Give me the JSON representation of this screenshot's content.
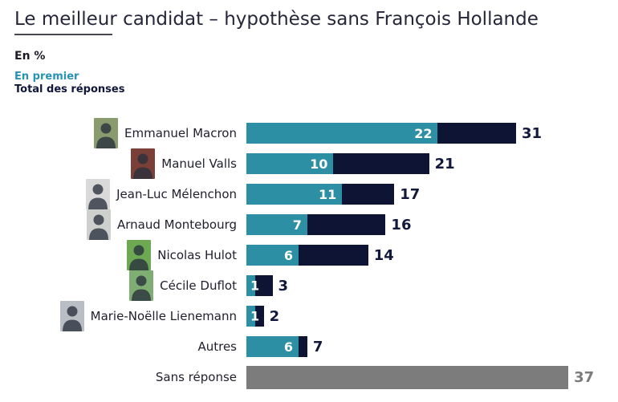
{
  "header": {
    "title": "Le meilleur candidat – hypothèse sans François Hollande",
    "unit_label": "En %"
  },
  "legend": {
    "first_label": "En premier",
    "total_label": "Total des réponses"
  },
  "colors": {
    "en_premier_bar": "#2D8FA3",
    "total_bar": "#0E1534",
    "sans_reponse_bar": "#7C7C7C",
    "title_text": "#26263A",
    "legend_first_text": "#2892B5",
    "legend_total_text": "#10173A",
    "total_label_text": "#13193C",
    "sans_reponse_label_text": "#7B7B7B",
    "bar_value_text": "#FFFFFF"
  },
  "chart_data": {
    "type": "bar",
    "orientation": "horizontal",
    "title": "Le meilleur candidat – hypothèse sans François Hollande",
    "unit": "En %",
    "xlim": [
      0,
      38
    ],
    "grid": false,
    "legend_position": "top-left",
    "categories": [
      "Emmanuel Macron",
      "Manuel Valls",
      "Jean-Luc Mélenchon",
      "Arnaud Montebourg",
      "Nicolas Hulot",
      "Cécile Duflot",
      "Marie-Noëlle Lienemann",
      "Autres"
    ],
    "series": [
      {
        "name": "En premier",
        "color": "#2D8FA3",
        "values": [
          22,
          10,
          11,
          7,
          6,
          1,
          1,
          6
        ]
      },
      {
        "name": "Total des réponses",
        "color": "#0E1534",
        "values": [
          31,
          21,
          17,
          16,
          14,
          3,
          2,
          7
        ]
      }
    ],
    "no_answer_row": {
      "label": "Sans réponse",
      "value": 37,
      "color": "#7C7C7C"
    },
    "photo_bgs": [
      "#8a9c6e",
      "#7a4038",
      "#d9d9d9",
      "#cdd0cd",
      "#6da853",
      "#7fae72",
      "#b9bdc4",
      null
    ]
  }
}
